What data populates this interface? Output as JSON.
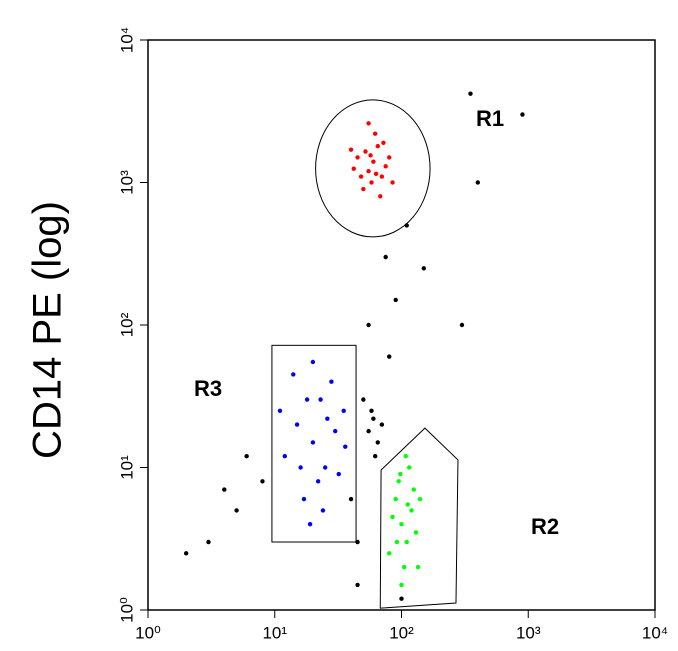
{
  "chart_data": {
    "type": "scatter",
    "y_label": "CD14 PE (log)",
    "xlim": [
      1,
      10000
    ],
    "ylim": [
      1,
      10000
    ],
    "xscale": "log",
    "yscale": "log",
    "xticks": [
      {
        "value": 1,
        "label": "10⁰"
      },
      {
        "value": 10,
        "label": "10¹"
      },
      {
        "value": 100,
        "label": "10²"
      },
      {
        "value": 1000,
        "label": "10³"
      },
      {
        "value": 10000,
        "label": "10⁴"
      }
    ],
    "yticks": [
      {
        "value": 1,
        "label": "10⁰"
      },
      {
        "value": 10,
        "label": "10¹"
      },
      {
        "value": 100,
        "label": "10²"
      },
      {
        "value": 1000,
        "label": "10³"
      },
      {
        "value": 10000,
        "label": "10⁴"
      }
    ],
    "series": [
      {
        "color": "#ff0000",
        "x": [
          45,
          55,
          60,
          70,
          50,
          65,
          58,
          75,
          42,
          62,
          52,
          80,
          68,
          48,
          57,
          72,
          40,
          63,
          55,
          85
        ],
        "y": [
          1500,
          1200,
          1400,
          1100,
          900,
          1800,
          1000,
          1300,
          1250,
          2200,
          1650,
          1500,
          800,
          1100,
          1550,
          1900,
          1700,
          1150,
          2600,
          1000
        ]
      },
      {
        "color": "#0000ff",
        "x": [
          15,
          20,
          25,
          18,
          22,
          30,
          12,
          28,
          17,
          35,
          14,
          24,
          32,
          20,
          11,
          26,
          19,
          36,
          16,
          23
        ],
        "y": [
          20,
          15,
          10,
          30,
          8,
          18,
          12,
          40,
          6,
          25,
          45,
          5,
          9,
          55,
          25,
          22,
          4,
          14,
          10,
          30
        ]
      },
      {
        "color": "#00ff00",
        "x": [
          100,
          110,
          90,
          120,
          105,
          95,
          130,
          85,
          115,
          100,
          140,
          80,
          125,
          108,
          92,
          135,
          112,
          98
        ],
        "y": [
          4,
          3,
          6,
          5,
          2,
          8,
          3.5,
          4.5,
          10,
          1.5,
          6,
          2.5,
          7,
          12,
          3,
          2,
          5.5,
          9
        ]
      },
      {
        "color": "#000000",
        "x": [
          55,
          60,
          65,
          58,
          70,
          62,
          50,
          80,
          90,
          75,
          110,
          8,
          5,
          3,
          2,
          6,
          4,
          40,
          45,
          150,
          300,
          400,
          350,
          900,
          55,
          100,
          45
        ],
        "y": [
          18,
          22,
          15,
          25,
          20,
          12,
          30,
          60,
          150,
          300,
          500,
          8,
          5,
          3,
          2.5,
          12,
          7,
          6,
          3,
          250,
          100,
          1000,
          4200,
          3000,
          100,
          1.2,
          1.5
        ]
      }
    ],
    "gates": [
      {
        "label": "R1",
        "shape": "ellipse",
        "x": [
          21,
          168
        ],
        "y": [
          415,
          3800
        ]
      },
      {
        "label": "R2",
        "shape": "polygon",
        "x": [
          69,
          153,
          279,
          269,
          68
        ],
        "y": [
          9.6,
          18.9,
          11.3,
          1.12,
          1.03
        ]
      },
      {
        "label": "R3",
        "shape": "rect",
        "x": [
          9.5,
          43.8
        ],
        "y": [
          3.0,
          72
        ]
      }
    ]
  }
}
